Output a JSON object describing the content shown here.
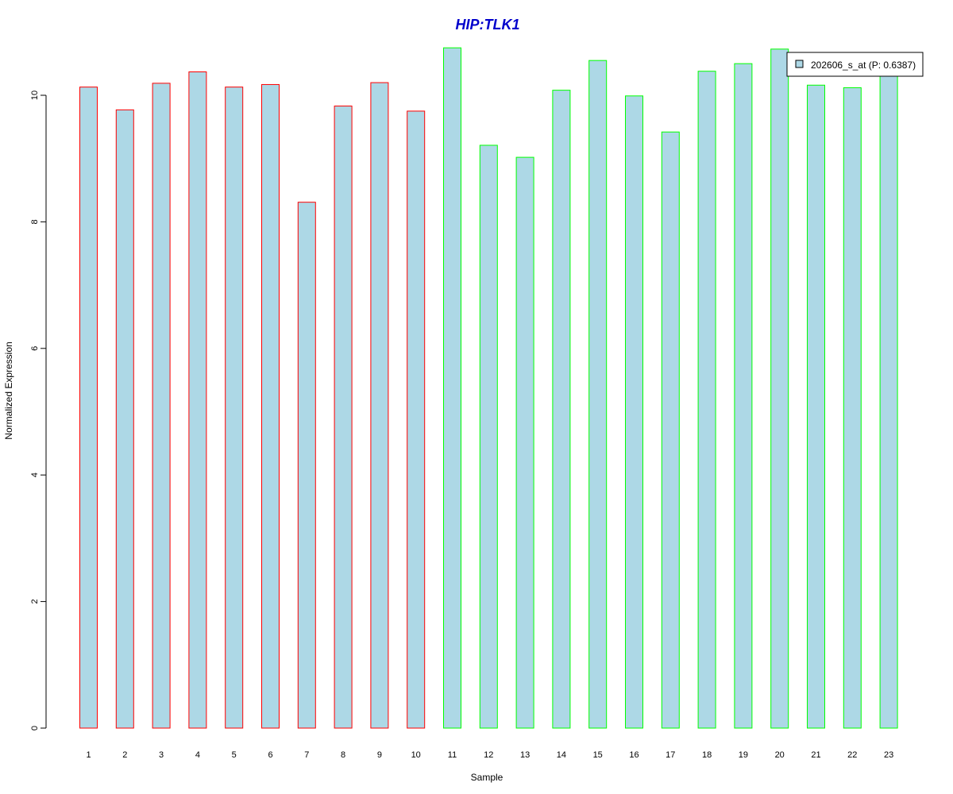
{
  "chart_data": {
    "type": "bar",
    "title": "HIP:TLK1",
    "title_color": "#0000CC",
    "xlabel": "Sample",
    "ylabel": "Normalized Expression",
    "ylim": [
      0,
      10.8
    ],
    "yticks": [
      0,
      2,
      4,
      6,
      8,
      10
    ],
    "grid": false,
    "legend_position": "top-right",
    "categories": [
      "1",
      "2",
      "3",
      "4",
      "5",
      "6",
      "7",
      "8",
      "9",
      "10",
      "11",
      "12",
      "13",
      "14",
      "15",
      "16",
      "17",
      "18",
      "19",
      "20",
      "21",
      "22",
      "23"
    ],
    "series": [
      {
        "name": "202606_s_at (P: 0.6387)",
        "fill": "#ADD8E6",
        "values": [
          10.13,
          9.77,
          10.19,
          10.37,
          10.13,
          10.17,
          8.31,
          9.83,
          10.2,
          9.75,
          10.75,
          9.21,
          9.02,
          10.08,
          10.55,
          9.99,
          9.42,
          10.38,
          10.5,
          10.73,
          10.16,
          10.12,
          10.5
        ]
      }
    ],
    "bar_outline_colors": [
      "#FF0000",
      "#FF0000",
      "#FF0000",
      "#FF0000",
      "#FF0000",
      "#FF0000",
      "#FF0000",
      "#FF0000",
      "#FF0000",
      "#FF0000",
      "#00FF00",
      "#00FF00",
      "#00FF00",
      "#00FF00",
      "#00FF00",
      "#00FF00",
      "#00FF00",
      "#00FF00",
      "#00FF00",
      "#00FF00",
      "#00FF00",
      "#00FF00",
      "#00FF00"
    ]
  }
}
